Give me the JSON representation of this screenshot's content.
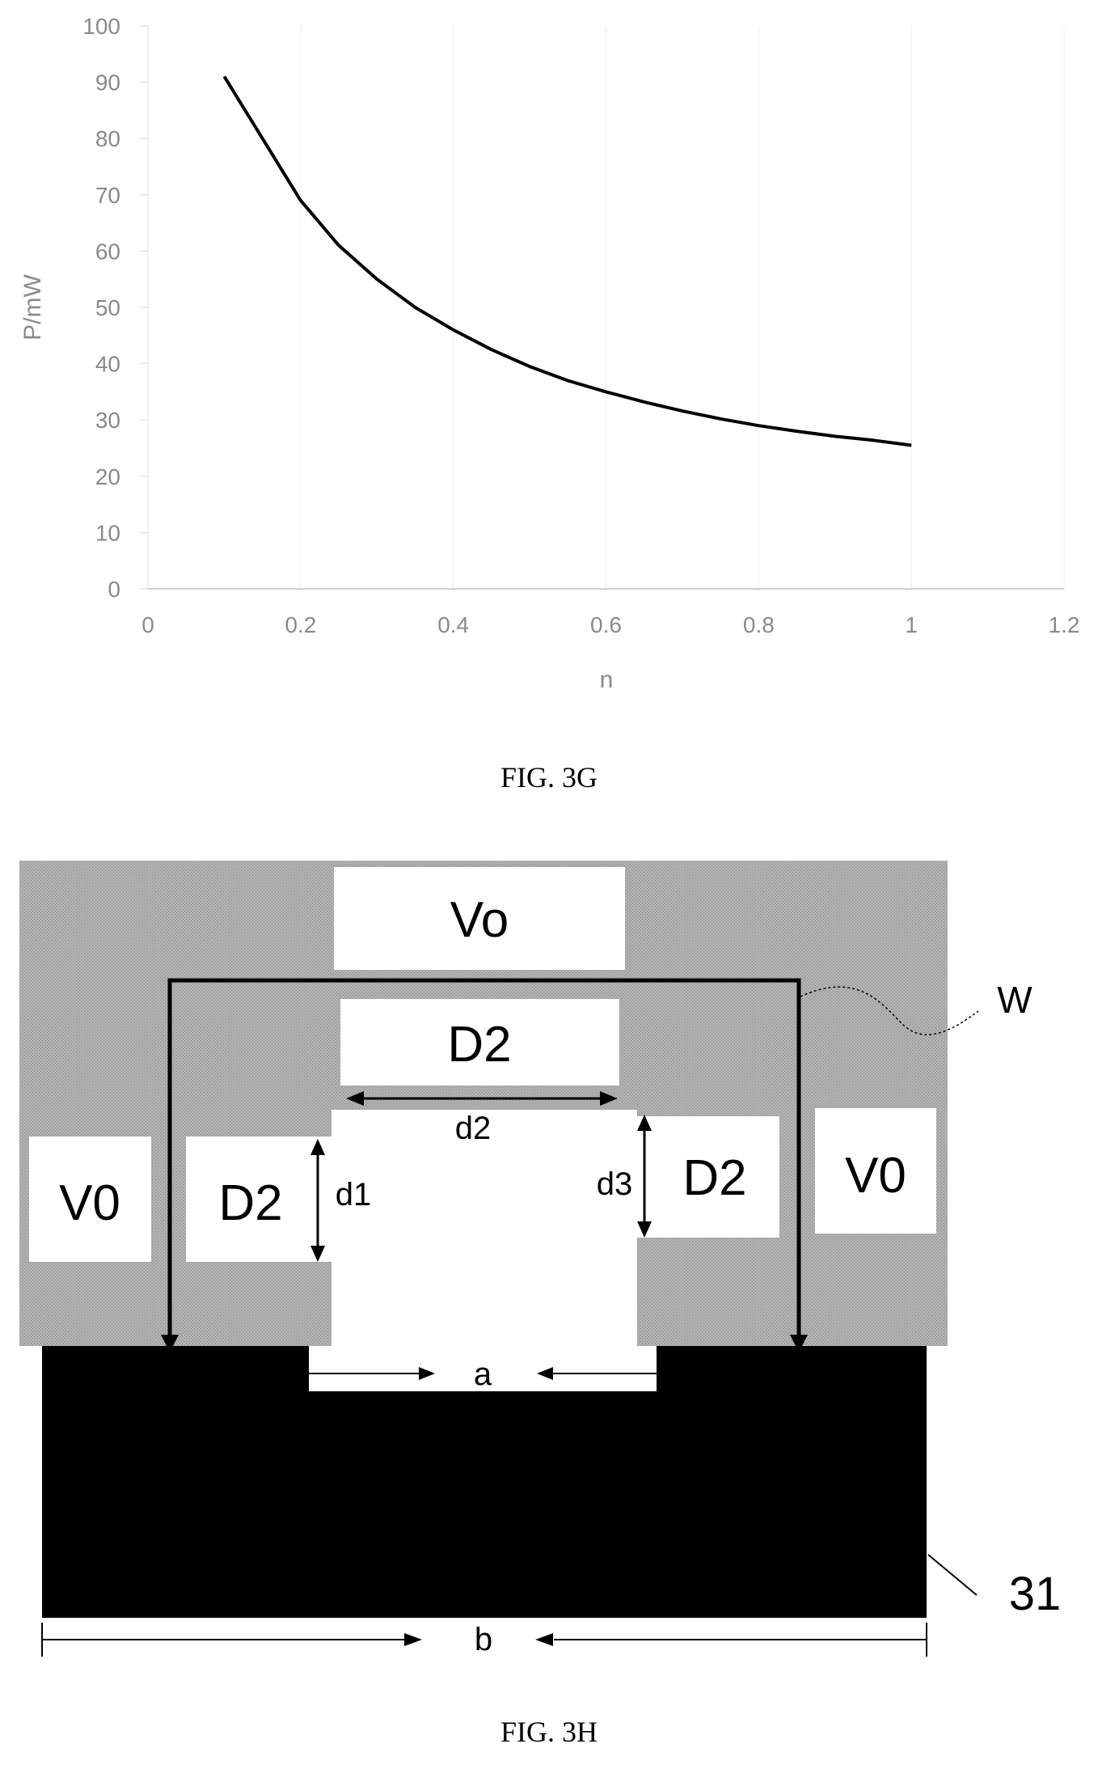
{
  "figure_g": {
    "caption": "FIG. 3G"
  },
  "chart_data": {
    "type": "line",
    "xlabel": "n",
    "ylabel": "P/mW",
    "xlim": [
      0,
      1.2
    ],
    "ylim": [
      0,
      100
    ],
    "x_ticks": [
      "0",
      "0.2",
      "0.4",
      "0.6",
      "0.8",
      "1",
      "1.2"
    ],
    "y_ticks": [
      "0",
      "10",
      "20",
      "30",
      "40",
      "50",
      "60",
      "70",
      "80",
      "90",
      "100"
    ],
    "grid": "faint",
    "series": [
      {
        "x": [
          0.1,
          0.15,
          0.2,
          0.25,
          0.3,
          0.35,
          0.4,
          0.45,
          0.5,
          0.55,
          0.6,
          0.65,
          0.7,
          0.75,
          0.8,
          0.85,
          0.9,
          0.95,
          1.0
        ],
        "values": [
          91,
          80,
          69,
          61,
          55,
          50,
          46,
          42.5,
          39.5,
          37,
          35,
          33.2,
          31.6,
          30.2,
          29,
          28,
          27.1,
          26.4,
          25.5
        ]
      }
    ]
  },
  "figure_h": {
    "caption": "FIG. 3H",
    "boxes": {
      "vo_top": "Vo",
      "d2_top": "D2",
      "v0_left": "V0",
      "d2_left": "D2",
      "d2_right": "D2",
      "v0_right": "V0"
    },
    "dimensions": {
      "d1": "d1",
      "d2": "d2",
      "d3": "d3",
      "a": "a",
      "b": "b"
    },
    "references": {
      "w": "W",
      "substrate": "31"
    },
    "colors": {
      "gray_region": "#a9a9a9",
      "substrate": "#000000"
    }
  }
}
